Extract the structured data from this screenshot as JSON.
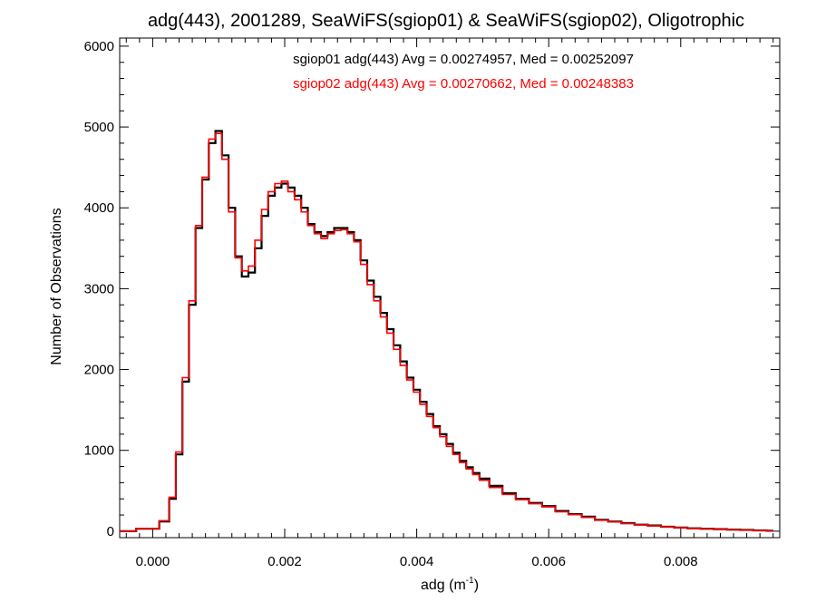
{
  "chart_data": {
    "type": "line",
    "title": "adg(443), 2001289, SeaWiFS(sgiop01) & SeaWiFS(sgiop02), Oligotrophic",
    "xlabel_base": "adg (m",
    "xlabel_sup": "-1",
    "xlabel_end": ")",
    "ylabel": "Number of Observations",
    "xlim": [
      -0.0005,
      0.0095
    ],
    "ylim": [
      -80,
      6100
    ],
    "xticks": [
      0.0,
      0.002,
      0.004,
      0.006,
      0.008
    ],
    "xtick_labels": [
      "0.000",
      "0.002",
      "0.004",
      "0.006",
      "0.008"
    ],
    "yticks": [
      0,
      1000,
      2000,
      3000,
      4000,
      5000,
      6000
    ],
    "ytick_labels": [
      "0",
      "1000",
      "2000",
      "3000",
      "4000",
      "5000",
      "6000"
    ],
    "annotations": [
      "sgiop01 adg(443) Avg = 0.00274957, Med = 0.00252097",
      "sgiop02 adg(443) Avg = 0.00270662, Med = 0.00248383"
    ],
    "series": [
      {
        "name": "sgiop01",
        "color": "#000000",
        "x": [
          -0.0005,
          0.0,
          0.0002,
          0.0003,
          0.0004,
          0.0005,
          0.0006,
          0.0007,
          0.0008,
          0.0009,
          0.001,
          0.0011,
          0.0012,
          0.0013,
          0.0014,
          0.0015,
          0.0016,
          0.0017,
          0.0018,
          0.0019,
          0.002,
          0.0021,
          0.0022,
          0.0023,
          0.0024,
          0.0025,
          0.0026,
          0.0027,
          0.0028,
          0.0029,
          0.003,
          0.0031,
          0.0032,
          0.0033,
          0.0034,
          0.0035,
          0.0036,
          0.0037,
          0.0038,
          0.0039,
          0.004,
          0.0041,
          0.0042,
          0.0043,
          0.0044,
          0.0045,
          0.0046,
          0.0047,
          0.0048,
          0.0049,
          0.005,
          0.0052,
          0.0054,
          0.0056,
          0.0058,
          0.006,
          0.0062,
          0.0064,
          0.0066,
          0.0068,
          0.007,
          0.0072,
          0.0074,
          0.0076,
          0.0078,
          0.008,
          0.0082,
          0.0084,
          0.0086,
          0.0088,
          0.009,
          0.0092,
          0.0094
        ],
        "y": [
          0,
          30,
          120,
          400,
          950,
          1850,
          2800,
          3750,
          4350,
          4800,
          4950,
          4650,
          4000,
          3400,
          3150,
          3200,
          3500,
          3900,
          4150,
          4250,
          4300,
          4250,
          4150,
          4000,
          3800,
          3700,
          3650,
          3700,
          3750,
          3750,
          3700,
          3600,
          3350,
          3100,
          2900,
          2700,
          2500,
          2300,
          2100,
          1900,
          1750,
          1600,
          1450,
          1300,
          1200,
          1080,
          970,
          870,
          790,
          720,
          650,
          560,
          470,
          400,
          350,
          310,
          250,
          210,
          180,
          140,
          120,
          100,
          80,
          70,
          55,
          45,
          35,
          30,
          25,
          20,
          15,
          10,
          5
        ]
      },
      {
        "name": "sgiop02",
        "color": "#ff0000",
        "x": [
          -0.0005,
          0.0,
          0.0002,
          0.0003,
          0.0004,
          0.0005,
          0.0006,
          0.0007,
          0.0008,
          0.0009,
          0.001,
          0.0011,
          0.0012,
          0.0013,
          0.0014,
          0.0015,
          0.0016,
          0.0017,
          0.0018,
          0.0019,
          0.002,
          0.0021,
          0.0022,
          0.0023,
          0.0024,
          0.0025,
          0.0026,
          0.0027,
          0.0028,
          0.0029,
          0.003,
          0.0031,
          0.0032,
          0.0033,
          0.0034,
          0.0035,
          0.0036,
          0.0037,
          0.0038,
          0.0039,
          0.004,
          0.0041,
          0.0042,
          0.0043,
          0.0044,
          0.0045,
          0.0046,
          0.0047,
          0.0048,
          0.0049,
          0.005,
          0.0052,
          0.0054,
          0.0056,
          0.0058,
          0.006,
          0.0062,
          0.0064,
          0.0066,
          0.0068,
          0.007,
          0.0072,
          0.0074,
          0.0076,
          0.0078,
          0.008,
          0.0082,
          0.0084,
          0.0086,
          0.0088,
          0.009,
          0.0092,
          0.0094
        ],
        "y": [
          0,
          30,
          130,
          420,
          980,
          1900,
          2850,
          3780,
          4380,
          4850,
          4920,
          4600,
          3950,
          3380,
          3220,
          3280,
          3600,
          3980,
          4200,
          4300,
          4330,
          4200,
          4100,
          3950,
          3780,
          3680,
          3620,
          3680,
          3720,
          3730,
          3680,
          3580,
          3300,
          3050,
          2850,
          2650,
          2450,
          2250,
          2050,
          1870,
          1720,
          1570,
          1420,
          1280,
          1170,
          1050,
          950,
          850,
          770,
          700,
          630,
          540,
          455,
          390,
          340,
          300,
          240,
          205,
          170,
          135,
          115,
          95,
          78,
          65,
          52,
          42,
          33,
          28,
          23,
          18,
          13,
          9,
          4
        ]
      }
    ]
  }
}
